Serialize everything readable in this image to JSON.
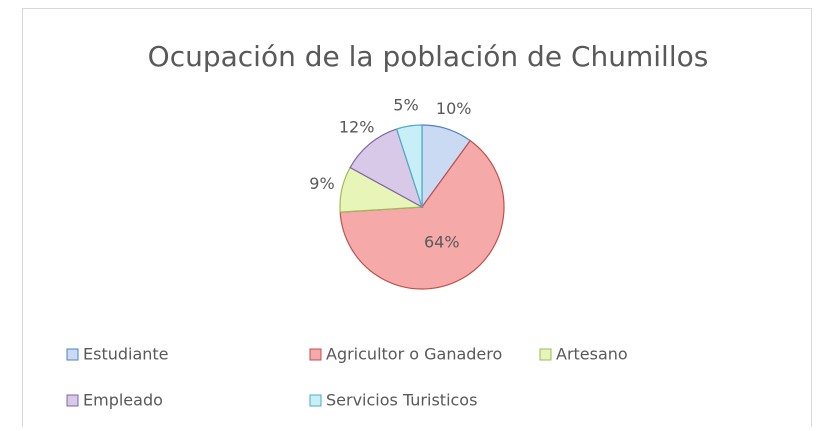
{
  "chart_data": {
    "type": "pie",
    "title": "Ocupación de la población de Chumillos",
    "categories": [
      "Estudiante",
      "Agricultor o Ganadero",
      "Artesano",
      "Empleado",
      "Servicios Turisticos"
    ],
    "values": [
      10,
      64,
      9,
      12,
      5
    ],
    "value_labels": [
      "10%",
      "64%",
      "9%",
      "12%",
      "5%"
    ],
    "colors": [
      "#c9daf2",
      "#f5a9a8",
      "#e8f5b8",
      "#d9c9e8",
      "#c8eef8"
    ],
    "legend": "bottom"
  }
}
